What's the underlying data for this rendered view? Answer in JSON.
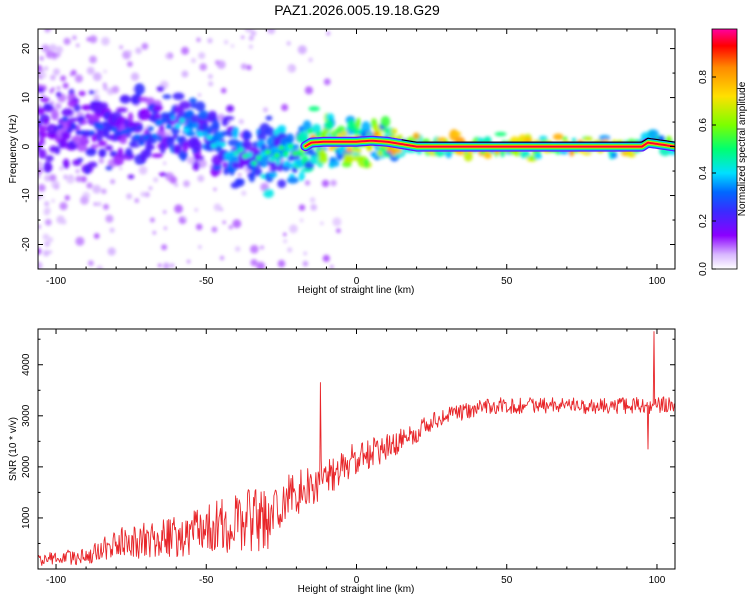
{
  "title": "PAZ1.2026.005.19.18.G29",
  "colors": {
    "snr_line": "#e8262a",
    "axis": "#000000",
    "background": "#ffffff",
    "colormap": [
      "#ffffff",
      "#8b00ff",
      "#3a2bff",
      "#0068ff",
      "#00e0ff",
      "#00ff70",
      "#7cff00",
      "#ffe000",
      "#ff8a00",
      "#ff0000",
      "#ff00a0"
    ]
  },
  "chart_data": [
    {
      "type": "heatmap",
      "name": "spectrogram",
      "xlabel": "Height of straight line (km)",
      "ylabel": "Frequency (Hz)",
      "xlim": [
        -106,
        106
      ],
      "ylim": [
        -25,
        24
      ],
      "xticks": [
        -100,
        -50,
        0,
        50,
        100
      ],
      "yticks": [
        -20,
        -10,
        0,
        10,
        20
      ],
      "colorbar": {
        "label": "Normalized spectral amplitude",
        "range": [
          0,
          1
        ],
        "ticks": [
          0.0,
          0.2,
          0.4,
          0.6,
          0.8
        ]
      },
      "ridge": [
        {
          "x": -100,
          "f": 3.5,
          "a": 0.25
        },
        {
          "x": -90,
          "f": 4.0,
          "a": 0.28
        },
        {
          "x": -80,
          "f": 3.5,
          "a": 0.3
        },
        {
          "x": -70,
          "f": 2.5,
          "a": 0.3
        },
        {
          "x": -60,
          "f": 5.5,
          "a": 0.4
        },
        {
          "x": -50,
          "f": 2.5,
          "a": 0.4
        },
        {
          "x": -40,
          "f": -1.5,
          "a": 0.45
        },
        {
          "x": -30,
          "f": -2.0,
          "a": 0.5
        },
        {
          "x": -20,
          "f": -1.0,
          "a": 0.55
        },
        {
          "x": -15,
          "f": 0.8,
          "a": 0.8
        },
        {
          "x": -10,
          "f": 1.0,
          "a": 0.75
        },
        {
          "x": 0,
          "f": 1.0,
          "a": 0.8
        },
        {
          "x": 5,
          "f": 1.2,
          "a": 0.85
        },
        {
          "x": 10,
          "f": 1.0,
          "a": 0.8
        },
        {
          "x": 15,
          "f": 0.5,
          "a": 0.85
        },
        {
          "x": 20,
          "f": 0.0,
          "a": 0.95
        },
        {
          "x": 50,
          "f": 0.0,
          "a": 1.0
        },
        {
          "x": 80,
          "f": 0.0,
          "a": 1.0
        },
        {
          "x": 95,
          "f": 0.0,
          "a": 0.9
        },
        {
          "x": 97,
          "f": 0.8,
          "a": 0.6
        },
        {
          "x": 106,
          "f": 0.0,
          "a": 0.9
        }
      ]
    },
    {
      "type": "line",
      "name": "snr",
      "xlabel": "Height of straight line (km)",
      "ylabel": "SNR (10 * v/v)",
      "xlim": [
        -106,
        106
      ],
      "ylim": [
        0,
        4700
      ],
      "xticks": [
        -100,
        -50,
        0,
        50,
        100
      ],
      "yticks": [
        1000,
        2000,
        3000,
        4000
      ],
      "trend": [
        {
          "x": -106,
          "y": 150
        },
        {
          "x": -90,
          "y": 200
        },
        {
          "x": -80,
          "y": 400
        },
        {
          "x": -60,
          "y": 500
        },
        {
          "x": -40,
          "y": 750
        },
        {
          "x": -30,
          "y": 800
        },
        {
          "x": -25,
          "y": 1300
        },
        {
          "x": -10,
          "y": 1800
        },
        {
          "x": 0,
          "y": 2150
        },
        {
          "x": 10,
          "y": 2400
        },
        {
          "x": 20,
          "y": 2700
        },
        {
          "x": 30,
          "y": 3000
        },
        {
          "x": 45,
          "y": 3200
        },
        {
          "x": 100,
          "y": 3200
        },
        {
          "x": 106,
          "y": 3250
        }
      ],
      "spikes": [
        {
          "x": -12,
          "y": 3650
        },
        {
          "x": 99,
          "y": 4650
        },
        {
          "x": 97,
          "y": 2350
        }
      ]
    }
  ]
}
